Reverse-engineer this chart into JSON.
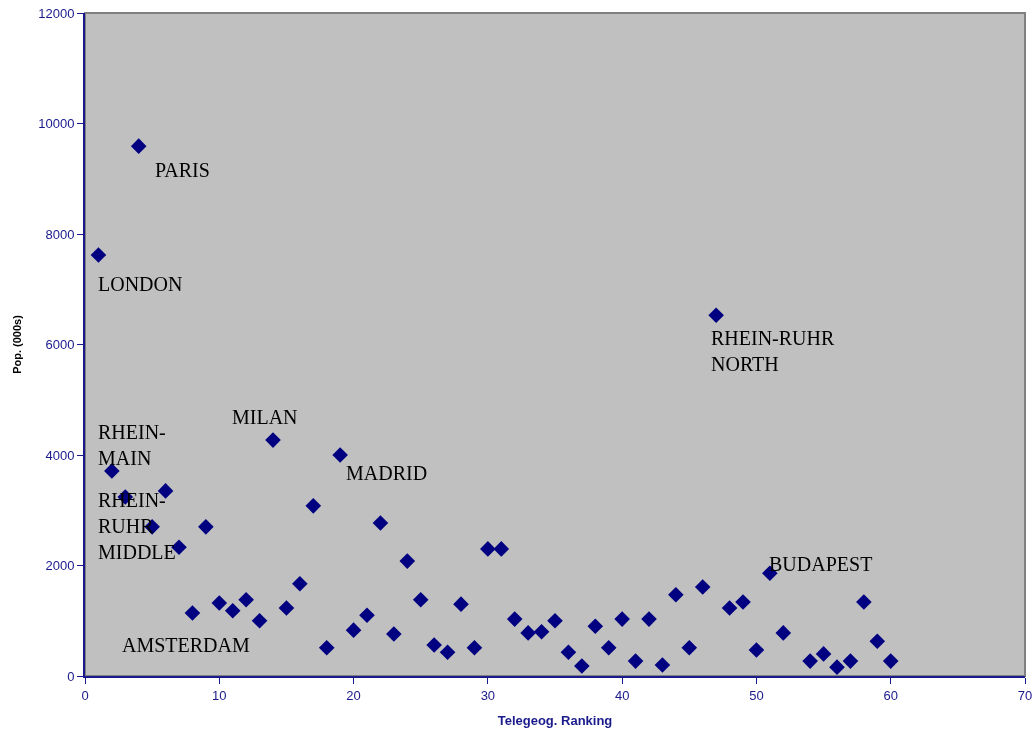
{
  "chart_data": {
    "type": "scatter",
    "xlabel": "Telegeog. Ranking",
    "ylabel": "Pop. (000s)",
    "x": [
      1,
      2,
      3,
      4,
      5,
      6,
      7,
      8,
      9,
      10,
      11,
      12,
      13,
      14,
      15,
      16,
      17,
      18,
      19,
      20,
      21,
      22,
      23,
      24,
      25,
      26,
      27,
      28,
      29,
      30,
      31,
      32,
      33,
      34,
      35,
      36,
      37,
      38,
      39,
      40,
      41,
      42,
      43,
      44,
      45,
      46,
      47,
      48,
      49,
      50,
      51,
      52,
      54,
      55,
      56,
      57,
      58,
      59,
      60
    ],
    "series": [
      {
        "color": "#000080",
        "values": [
          7620,
          3710,
          3240,
          9590,
          2700,
          3350,
          2330,
          1140,
          2700,
          1320,
          1180,
          1380,
          1000,
          4270,
          1230,
          1670,
          3080,
          510,
          4000,
          830,
          1100,
          2770,
          760,
          2080,
          1380,
          560,
          430,
          1300,
          510,
          2300,
          2300,
          1030,
          780,
          800,
          1000,
          430,
          180,
          900,
          510,
          1030,
          270,
          1030,
          200,
          1470,
          510,
          1610,
          6530,
          1230,
          1340,
          470,
          1860,
          780,
          270,
          400,
          160,
          270,
          1340,
          630,
          270
        ]
      }
    ],
    "marker": "diamond",
    "xlim": [
      0,
      70
    ],
    "xticks": [
      0,
      10,
      20,
      30,
      40,
      50,
      60,
      70
    ],
    "ylim": [
      0,
      12000
    ],
    "yticks": [
      0,
      2000,
      4000,
      6000,
      8000,
      10000,
      12000
    ],
    "grid": false,
    "annotations": [
      {
        "text": "PARIS",
        "x": 4,
        "y": 9590
      },
      {
        "text": "LONDON",
        "x": 1,
        "y": 7620
      },
      {
        "text": "RHEIN-RUHR\nNORTH",
        "x": 47,
        "y": 6530
      },
      {
        "text": "MILAN",
        "x": 14,
        "y": 4270
      },
      {
        "text": "RHEIN-\nMAIN",
        "x": 2,
        "y": 3710
      },
      {
        "text": "MADRID",
        "x": 19,
        "y": 4000
      },
      {
        "text": "RHEIN-\nRUHR\nMIDDLE",
        "x": 3,
        "y": 3240
      },
      {
        "text": "BUDAPEST",
        "x": 51,
        "y": 1860
      },
      {
        "text": "AMSTERDAM",
        "x": 8,
        "y": 1140
      }
    ]
  }
}
